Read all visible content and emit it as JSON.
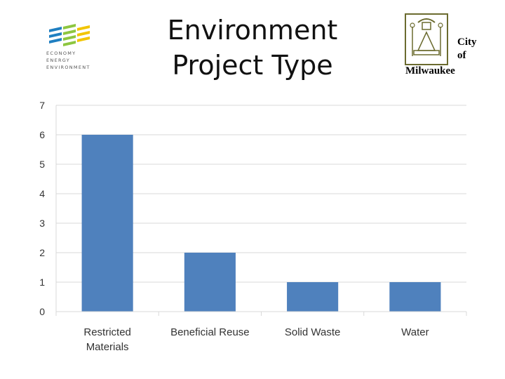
{
  "slide": {
    "title_line1": "Environment",
    "title_line2": "Project Type"
  },
  "logo_left": {
    "icon": "eee-stripes-logo",
    "line1": "ECONOMY",
    "line2": "ENERGY",
    "line3": "ENVIRONMENT",
    "colors": [
      "#1f7fc1",
      "#8dc63f",
      "#f2c500"
    ]
  },
  "logo_right": {
    "icon": "city-seal-logo",
    "word1": "City",
    "word2": "of",
    "word3": "Milwaukee"
  },
  "chart_data": {
    "type": "bar",
    "categories": [
      "Restricted Materials",
      "Beneficial Reuse",
      "Solid Waste",
      "Water"
    ],
    "category_lines": [
      [
        "Restricted",
        "Materials"
      ],
      [
        "Beneficial Reuse"
      ],
      [
        "Solid Waste"
      ],
      [
        "Water"
      ]
    ],
    "values": [
      6,
      2,
      1,
      1
    ],
    "yticks": [
      "0",
      "1",
      "2",
      "3",
      "4",
      "5",
      "6",
      "7"
    ],
    "ylim": [
      0,
      7
    ],
    "grid": true,
    "bar_color": "#4f81bd",
    "grid_color": "#d9d9d9",
    "legend": "none"
  }
}
